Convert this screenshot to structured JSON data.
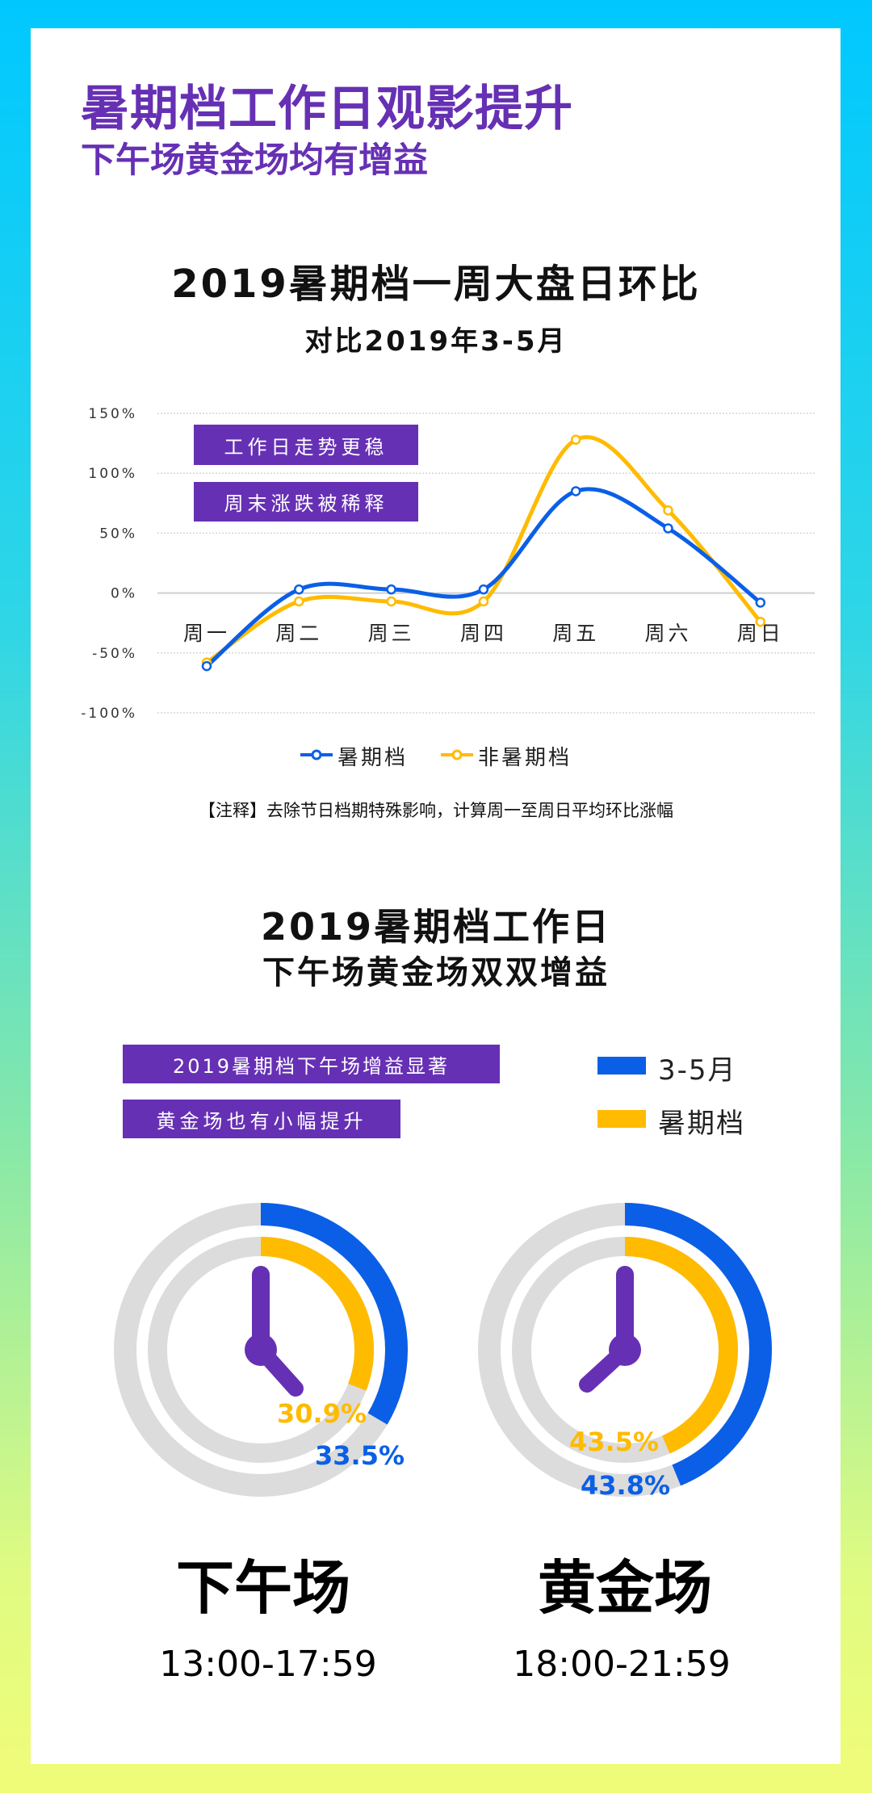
{
  "header": {
    "title": "暑期档工作日观影提升",
    "subtitle": "下午场黄金场均有增益"
  },
  "colors": {
    "purple": "#6630b4",
    "blue": "#0a5fe6",
    "yellow": "#ffbb00",
    "ring_gray": "#dcdcdc"
  },
  "chart_data": [
    {
      "type": "line",
      "title": "2019暑期档一周大盘日环比",
      "subtitle": "对比2019年3-5月",
      "categories": [
        "周一",
        "周二",
        "周三",
        "周四",
        "周五",
        "周六",
        "周日"
      ],
      "y_ticks": [
        "150%",
        "100%",
        "50%",
        "0%",
        "-50%",
        "-100%"
      ],
      "ylim": [
        -100,
        150
      ],
      "grid": true,
      "legend_placement": "bottom",
      "series": [
        {
          "name": "暑期档",
          "color": "#0a5fe6",
          "values": [
            -61,
            3,
            3,
            3,
            85,
            54,
            -8
          ]
        },
        {
          "name": "非暑期档",
          "color": "#ffbb00",
          "values": [
            -58,
            -7,
            -7,
            -7,
            128,
            69,
            -24
          ]
        }
      ],
      "annotations": [
        "工作日走势更稳",
        "周末涨跌被稀释"
      ],
      "note": "【注释】去除节日档期特殊影响，计算周一至周日平均环比涨幅"
    },
    {
      "type": "pie",
      "title": "2019暑期档工作日",
      "subtitle": "下午场黄金场双双增益",
      "annotations": [
        "2019暑期档下午场增益显著",
        "黄金场也有小幅提升"
      ],
      "legend": [
        {
          "name": "3-5月",
          "color": "#0a5fe6"
        },
        {
          "name": "暑期档",
          "color": "#ffbb00"
        }
      ],
      "clocks": [
        {
          "name": "下午场",
          "time": "13:00-17:59",
          "values": {
            "3-5月": 33.5,
            "暑期档": 30.9
          },
          "labels": {
            "3-5月": "33.5%",
            "暑期档": "30.9%"
          }
        },
        {
          "name": "黄金场",
          "time": "18:00-21:59",
          "values": {
            "3-5月": 43.8,
            "暑期档": 43.5
          },
          "labels": {
            "3-5月": "43.8%",
            "暑期档": "43.5%"
          }
        }
      ]
    }
  ]
}
